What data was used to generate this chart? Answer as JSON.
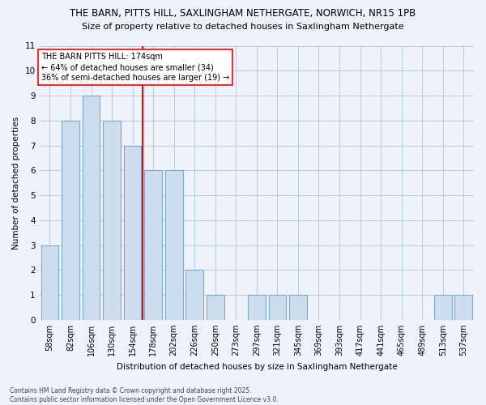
{
  "title1": "THE BARN, PITTS HILL, SAXLINGHAM NETHERGATE, NORWICH, NR15 1PB",
  "title2": "Size of property relative to detached houses in Saxlingham Nethergate",
  "xlabel": "Distribution of detached houses by size in Saxlingham Nethergate",
  "ylabel": "Number of detached properties",
  "bins": [
    "58sqm",
    "82sqm",
    "106sqm",
    "130sqm",
    "154sqm",
    "178sqm",
    "202sqm",
    "226sqm",
    "250sqm",
    "273sqm",
    "297sqm",
    "321sqm",
    "345sqm",
    "369sqm",
    "393sqm",
    "417sqm",
    "441sqm",
    "465sqm",
    "489sqm",
    "513sqm",
    "537sqm"
  ],
  "values": [
    3,
    8,
    9,
    8,
    7,
    6,
    6,
    2,
    1,
    0,
    1,
    1,
    1,
    0,
    0,
    0,
    0,
    0,
    0,
    1,
    1
  ],
  "bar_color": "#ccdded",
  "bar_edge_color": "#7baac8",
  "ref_line_index": 5,
  "annotation_text": "THE BARN PITTS HILL: 174sqm\n← 64% of detached houses are smaller (34)\n36% of semi-detached houses are larger (19) →",
  "annotation_box_color": "white",
  "annotation_box_edge_color": "red",
  "ref_line_color": "red",
  "ylim": [
    0,
    11
  ],
  "yticks": [
    0,
    1,
    2,
    3,
    4,
    5,
    6,
    7,
    8,
    9,
    10,
    11
  ],
  "footer": "Contains HM Land Registry data © Crown copyright and database right 2025.\nContains public sector information licensed under the Open Government Licence v3.0.",
  "background_color": "#eef2fa",
  "title_fontsize": 8.5,
  "subtitle_fontsize": 8,
  "axis_label_fontsize": 7.5,
  "tick_fontsize": 7,
  "annot_fontsize": 7,
  "footer_fontsize": 5.5
}
